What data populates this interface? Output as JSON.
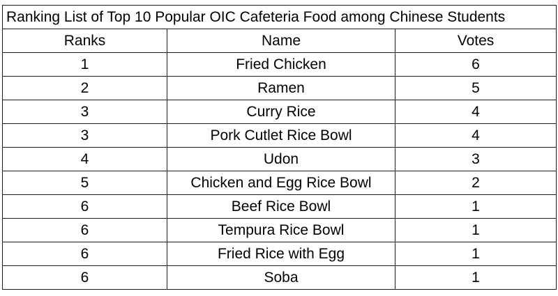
{
  "table": {
    "title": "Ranking List of Top 10 Popular OIC Cafeteria Food among Chinese Students",
    "headers": {
      "rank": "Ranks",
      "name": "Name",
      "votes": "Votes"
    },
    "rows": [
      {
        "rank": "1",
        "name": "Fried Chicken",
        "votes": "6"
      },
      {
        "rank": "2",
        "name": "Ramen",
        "votes": "5"
      },
      {
        "rank": "3",
        "name": "Curry Rice",
        "votes": "4"
      },
      {
        "rank": "3",
        "name": "Pork Cutlet Rice Bowl",
        "votes": "4"
      },
      {
        "rank": "4",
        "name": "Udon",
        "votes": "3"
      },
      {
        "rank": "5",
        "name": "Chicken and Egg Rice Bowl",
        "votes": "2"
      },
      {
        "rank": "6",
        "name": "Beef Rice Bowl",
        "votes": "1"
      },
      {
        "rank": "6",
        "name": "Tempura Rice Bowl",
        "votes": "1"
      },
      {
        "rank": "6",
        "name": "Fried Rice with Egg",
        "votes": "1"
      },
      {
        "rank": "6",
        "name": "Soba",
        "votes": "1"
      }
    ]
  }
}
